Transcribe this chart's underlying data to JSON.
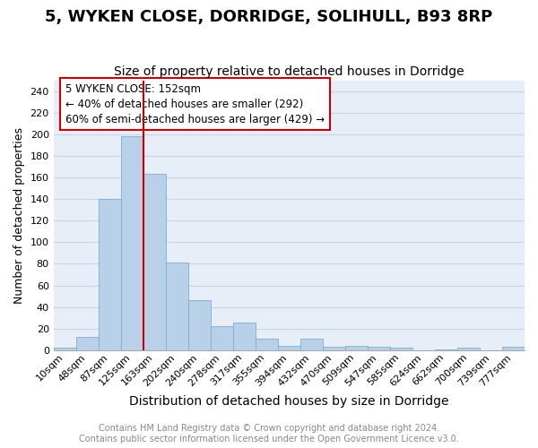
{
  "title": "5, WYKEN CLOSE, DORRIDGE, SOLIHULL, B93 8RP",
  "subtitle": "Size of property relative to detached houses in Dorridge",
  "xlabel": "Distribution of detached houses by size in Dorridge",
  "ylabel": "Number of detached properties",
  "bar_labels": [
    "10sqm",
    "48sqm",
    "87sqm",
    "125sqm",
    "163sqm",
    "202sqm",
    "240sqm",
    "278sqm",
    "317sqm",
    "355sqm",
    "394sqm",
    "432sqm",
    "470sqm",
    "509sqm",
    "547sqm",
    "585sqm",
    "624sqm",
    "662sqm",
    "700sqm",
    "739sqm",
    "777sqm"
  ],
  "bar_heights": [
    2,
    12,
    140,
    198,
    163,
    81,
    46,
    22,
    26,
    11,
    4,
    11,
    3,
    4,
    3,
    2,
    0,
    1,
    2,
    0,
    3
  ],
  "bar_color": "#b8d0e8",
  "bar_edge_color": "#7aafd4",
  "property_line_color": "#cc0000",
  "property_line_index": 4,
  "annotation_lines": [
    "5 WYKEN CLOSE: 152sqm",
    "← 40% of detached houses are smaller (292)",
    "60% of semi-detached houses are larger (429) →"
  ],
  "annotation_box_color": "#cc0000",
  "ylim": [
    0,
    250
  ],
  "yticks": [
    0,
    20,
    40,
    60,
    80,
    100,
    120,
    140,
    160,
    180,
    200,
    220,
    240
  ],
  "grid_color": "#c8d4e4",
  "background_color": "#e8eef8",
  "footer_line1": "Contains HM Land Registry data © Crown copyright and database right 2024.",
  "footer_line2": "Contains public sector information licensed under the Open Government Licence v3.0.",
  "footer_color": "#888888",
  "title_fontsize": 13,
  "subtitle_fontsize": 10,
  "xlabel_fontsize": 10,
  "ylabel_fontsize": 9,
  "annotation_fontsize": 8.5,
  "tick_fontsize": 8,
  "footer_fontsize": 7
}
